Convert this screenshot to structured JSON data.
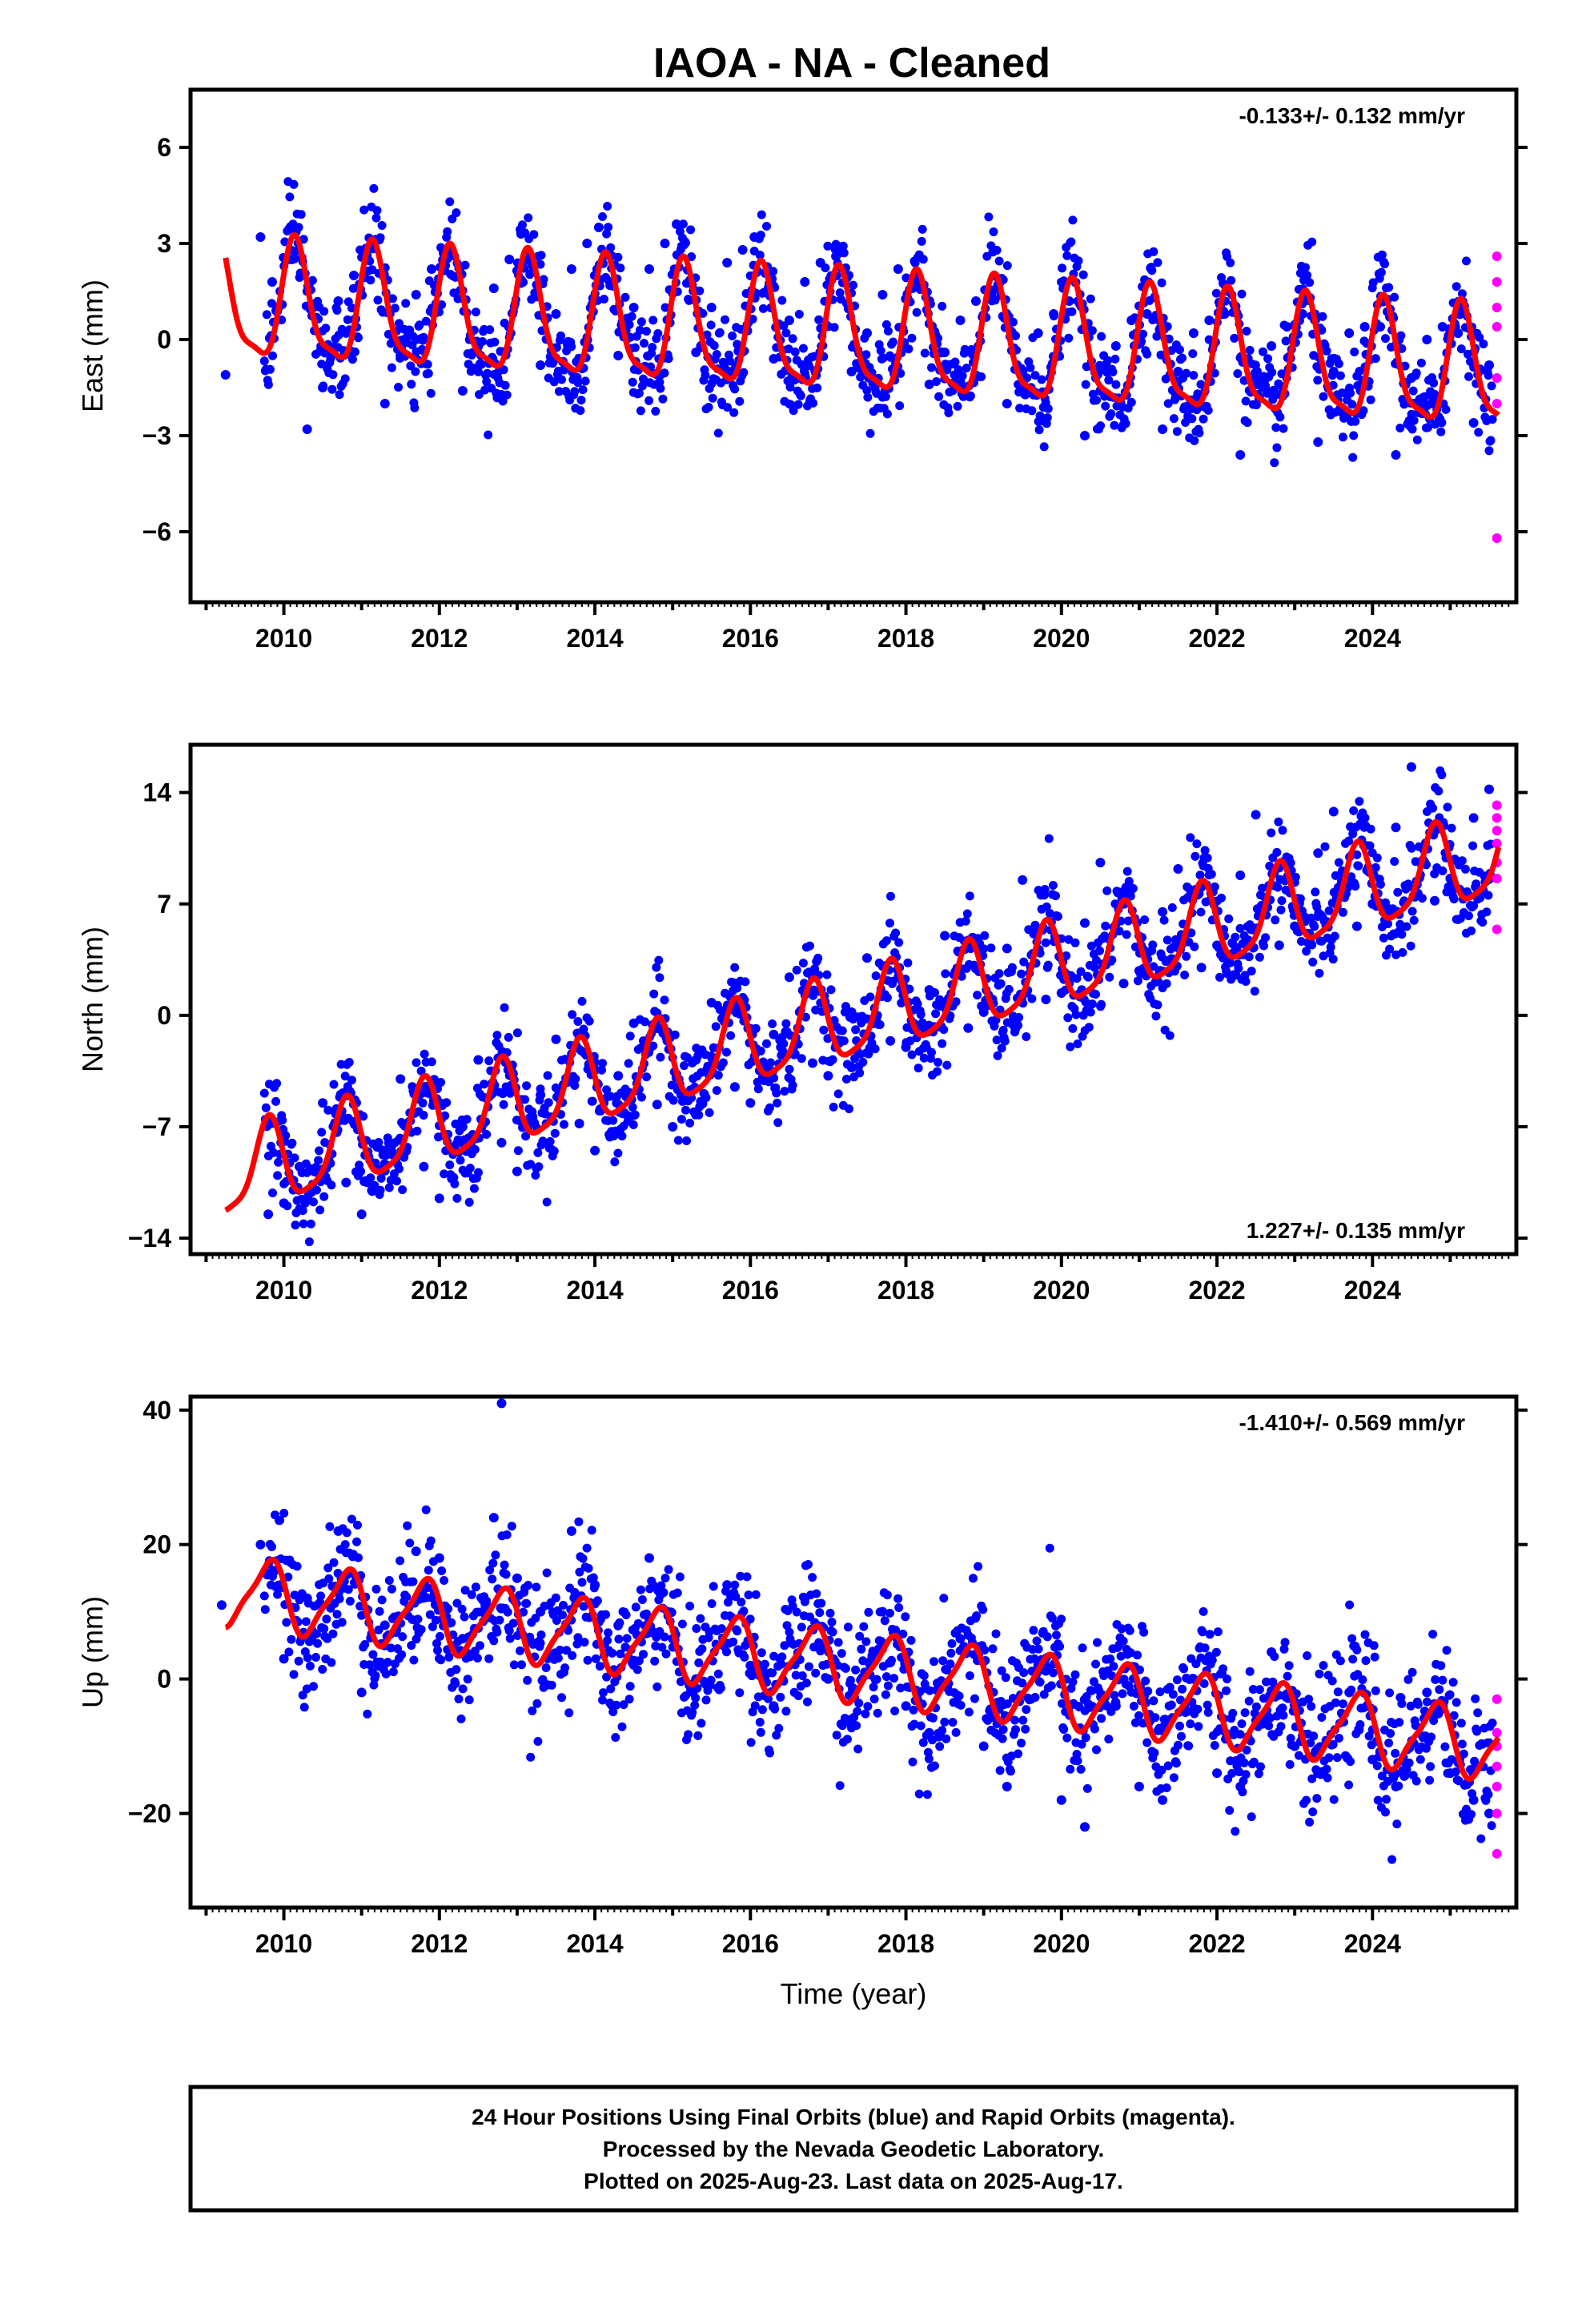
{
  "title": "IAOA  - NA - Cleaned",
  "colors": {
    "final": "#0000ff",
    "rapid": "#ff00ff",
    "model": "#ff0000",
    "frame": "#000000"
  },
  "chart_data": [
    {
      "type": "scatter",
      "name": "east",
      "ylabel": "East (mm)",
      "xlim": [
        2008.8,
        2025.85
      ],
      "ylim": [
        -8.2,
        7.8
      ],
      "yticks": [
        -6,
        -3,
        0,
        3,
        6
      ],
      "yticklabels": [
        "−6",
        "−3",
        "0",
        "3",
        "6"
      ],
      "xticks": [
        2010,
        2012,
        2014,
        2016,
        2018,
        2020,
        2022,
        2024
      ],
      "xticklabels": [
        "2010",
        "2012",
        "2014",
        "2016",
        "2018",
        "2020",
        "2022",
        "2024"
      ],
      "rate_text": "-0.133+/- 0.132 mm/yr",
      "rate_position": "top-right",
      "series": [
        {
          "role": "final",
          "x": [
            2009.25,
            2009.7,
            2009.85,
            2010.1,
            2010.3,
            2010.5,
            2010.7,
            2010.9,
            2011.05,
            2011.3,
            2011.5,
            2011.7,
            2011.9,
            2012.05,
            2012.3,
            2012.5,
            2012.7,
            2012.9,
            2013.05,
            2013.3,
            2013.5,
            2013.7,
            2013.9,
            2014.05,
            2014.3,
            2014.5,
            2014.7,
            2014.9,
            2015.05,
            2015.3,
            2015.5,
            2015.7,
            2015.9,
            2016.05,
            2016.3,
            2016.5,
            2016.7,
            2016.9,
            2017.1,
            2017.3,
            2017.5,
            2017.7,
            2017.9,
            2018.1,
            2018.3,
            2018.5,
            2018.7,
            2018.9,
            2019.1,
            2019.3,
            2019.5,
            2019.7,
            2019.9,
            2020.1,
            2020.3,
            2020.5,
            2020.7,
            2020.9,
            2021.1,
            2021.3,
            2021.5,
            2021.7,
            2021.9,
            2022.1,
            2022.3,
            2022.5,
            2022.7,
            2022.9,
            2023.1,
            2023.3,
            2023.5,
            2023.7,
            2023.9,
            2024.1,
            2024.3,
            2024.5,
            2024.7,
            2024.9,
            2025.1,
            2025.3,
            2025.5
          ],
          "y": [
            -1.1,
            3.2,
            1.8,
            2.5,
            -2.8,
            -1.5,
            1.2,
            2.0,
            2.6,
            -2.0,
            -0.5,
            1.4,
            2.2,
            2.8,
            -1.6,
            -0.2,
            1.6,
            2.5,
            3.3,
            -0.8,
            0.8,
            2.2,
            3.0,
            3.5,
            -0.5,
            1.0,
            2.2,
            3.0,
            3.6,
            -0.4,
            1.0,
            2.4,
            2.8,
            3.2,
            -0.6,
            0.6,
            1.8,
            2.4,
            2.6,
            -1.0,
            0.2,
            1.4,
            2.2,
            1.8,
            -1.4,
            -0.4,
            0.6,
            1.2,
            1.4,
            -2.0,
            -1.0,
            0.2,
            0.8,
            1.2,
            -3.0,
            -1.6,
            -0.2,
            0.6,
            0.8,
            -2.8,
            -1.0,
            0.2,
            0.6,
            0.8,
            -3.6,
            -1.4,
            -0.2,
            0.4,
            0.8,
            -3.2,
            -1.0,
            0.2,
            0.4,
            0.4,
            -3.6,
            -1.2,
            0.0,
            0.4,
            0.2,
            -2.6,
            -0.8
          ]
        },
        {
          "role": "rapid",
          "x": [
            2025.6,
            2025.6,
            2025.6,
            2025.6,
            2025.6,
            2025.6,
            2025.6
          ],
          "y": [
            2.6,
            1.8,
            1.0,
            0.4,
            -1.2,
            -2.0,
            -6.2
          ]
        }
      ],
      "model": {
        "offset": 0.0,
        "rate": -0.133,
        "ref": 2017.5,
        "amp_annual": 1.8,
        "phase": 0.1,
        "amp_semi": 0.5,
        "phase_semi": 0.5
      }
    },
    {
      "type": "scatter",
      "name": "north",
      "ylabel": "North (mm)",
      "xlim": [
        2008.8,
        2025.85
      ],
      "ylim": [
        -15,
        17
      ],
      "yticks": [
        -14,
        -7,
        0,
        7,
        14
      ],
      "yticklabels": [
        "−14",
        "−7",
        "0",
        "7",
        "14"
      ],
      "xticks": [
        2010,
        2012,
        2014,
        2016,
        2018,
        2020,
        2022,
        2024
      ],
      "xticklabels": [
        "2010",
        "2012",
        "2014",
        "2016",
        "2018",
        "2020",
        "2022",
        "2024"
      ],
      "rate_text": "1.227+/- 0.135 mm/yr",
      "rate_position": "bottom-right",
      "series": [
        {
          "role": "final",
          "x": [
            2009.8,
            2010.0,
            2010.2,
            2010.5,
            2010.8,
            2011.0,
            2011.3,
            2011.5,
            2011.8,
            2012.0,
            2012.3,
            2012.5,
            2012.8,
            2013.0,
            2013.3,
            2013.5,
            2013.8,
            2014.0,
            2014.3,
            2014.5,
            2014.8,
            2015.0,
            2015.3,
            2015.5,
            2015.8,
            2016.0,
            2016.3,
            2016.5,
            2016.8,
            2017.0,
            2017.3,
            2017.5,
            2017.8,
            2018.0,
            2018.3,
            2018.5,
            2018.8,
            2019.0,
            2019.3,
            2019.5,
            2019.8,
            2020.0,
            2020.3,
            2020.5,
            2020.8,
            2021.0,
            2021.3,
            2021.5,
            2021.8,
            2022.0,
            2022.3,
            2022.5,
            2022.8,
            2023.0,
            2023.3,
            2023.5,
            2023.8,
            2024.0,
            2024.3,
            2024.5,
            2024.8,
            2025.0,
            2025.3,
            2025.5
          ],
          "y": [
            -12.5,
            -11.8,
            -9.5,
            -5.5,
            -10.5,
            -12.5,
            -8.5,
            -4.0,
            -9.5,
            -11.5,
            -7.0,
            -2.8,
            -8.0,
            -9.8,
            -5.0,
            -1.5,
            -6.8,
            -8.5,
            -3.8,
            -0.5,
            -5.6,
            -7.0,
            -2.8,
            0.8,
            -4.5,
            -5.5,
            -1.2,
            2.4,
            -3.0,
            -3.8,
            0.2,
            3.6,
            -1.6,
            -2.0,
            1.6,
            5.0,
            -0.8,
            0.2,
            4.2,
            8.5,
            1.0,
            1.4,
            5.8,
            9.6,
            2.0,
            2.8,
            6.5,
            9.2,
            3.0,
            4.4,
            8.8,
            12.6,
            4.4,
            5.6,
            10.2,
            12.8,
            5.6,
            7.0,
            11.8,
            15.6,
            7.2,
            8.6,
            12.4,
            14.2
          ]
        },
        {
          "role": "rapid",
          "x": [
            2025.6,
            2025.6,
            2025.6,
            2025.6,
            2025.6,
            2025.6,
            2025.6
          ],
          "y": [
            13.2,
            12.4,
            11.6,
            10.8,
            9.6,
            8.6,
            5.4
          ]
        }
      ],
      "model": {
        "offset": 0.0,
        "rate": 1.227,
        "ref": 2017.5,
        "amp_annual": 2.6,
        "phase": 0.45,
        "amp_semi": 0.6,
        "phase_semi": 0.3
      }
    },
    {
      "type": "scatter",
      "name": "up",
      "ylabel": "Up (mm)",
      "xlim": [
        2008.8,
        2025.85
      ],
      "ylim": [
        -34,
        42
      ],
      "yticks": [
        -20,
        0,
        20,
        40
      ],
      "yticklabels": [
        "−20",
        "0",
        "20",
        "40"
      ],
      "xticks": [
        2010,
        2012,
        2014,
        2016,
        2018,
        2020,
        2022,
        2024
      ],
      "xticklabels": [
        "2010",
        "2012",
        "2014",
        "2016",
        "2018",
        "2020",
        "2022",
        "2024"
      ],
      "xlabel": "Time (year)",
      "rate_text": "-1.410+/- 0.569 mm/yr",
      "rate_position": "top-right",
      "series": [
        {
          "role": "final",
          "x": [
            2009.2,
            2009.7,
            2010.0,
            2010.3,
            2010.7,
            2011.0,
            2011.3,
            2011.7,
            2012.0,
            2012.3,
            2012.7,
            2012.8,
            2013.0,
            2013.3,
            2013.7,
            2014.0,
            2014.3,
            2014.7,
            2015.0,
            2015.3,
            2015.7,
            2016.0,
            2016.3,
            2016.7,
            2017.0,
            2017.3,
            2017.7,
            2018.0,
            2018.3,
            2018.7,
            2019.0,
            2019.3,
            2019.7,
            2020.0,
            2020.3,
            2020.7,
            2021.0,
            2021.3,
            2021.7,
            2022.0,
            2022.3,
            2022.7,
            2023.0,
            2023.3,
            2023.7,
            2024.0,
            2024.3,
            2024.7,
            2025.0,
            2025.3,
            2025.5
          ],
          "y": [
            11,
            20,
            3,
            12,
            22,
            -2,
            8,
            19,
            18,
            6,
            24,
            41,
            15,
            10,
            22,
            14,
            8,
            18,
            6,
            0,
            14,
            2,
            -4,
            12,
            0,
            -6,
            10,
            -4,
            -8,
            6,
            -10,
            -16,
            2,
            -18,
            -22,
            -4,
            -16,
            -18,
            0,
            -14,
            -16,
            4,
            -10,
            -14,
            -2,
            -12,
            -16,
            -2,
            -14,
            -18,
            -20
          ]
        },
        {
          "role": "rapid",
          "x": [
            2025.6,
            2025.6,
            2025.6,
            2025.6,
            2025.6,
            2025.6,
            2025.6
          ],
          "y": [
            -3,
            -8,
            -10,
            -13,
            -16,
            -20,
            -26
          ]
        }
      ],
      "model": {
        "offset": 1.5,
        "rate": -1.41,
        "ref": 2017.5,
        "amp_annual": 5.0,
        "phase": 0.45,
        "amp_semi": 1.2,
        "phase_semi": 0.2
      }
    }
  ],
  "footer": {
    "line1": "24 Hour Positions Using Final Orbits (blue) and Rapid Orbits (magenta).",
    "line2": "Processed by the Nevada Geodetic Laboratory.",
    "line3": "Plotted on 2025-Aug-23. Last data on 2025-Aug-17."
  }
}
